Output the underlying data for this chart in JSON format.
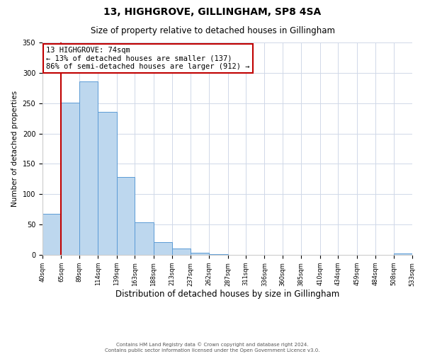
{
  "title": "13, HIGHGROVE, GILLINGHAM, SP8 4SA",
  "subtitle": "Size of property relative to detached houses in Gillingham",
  "xlabel": "Distribution of detached houses by size in Gillingham",
  "ylabel": "Number of detached properties",
  "bin_edges": [
    40,
    65,
    89,
    114,
    139,
    163,
    188,
    213,
    237,
    262,
    287,
    311,
    336,
    360,
    385,
    410,
    434,
    459,
    484,
    508,
    533
  ],
  "bar_heights": [
    68,
    251,
    286,
    236,
    128,
    54,
    21,
    10,
    4,
    1,
    0,
    0,
    0,
    0,
    0,
    0,
    0,
    0,
    0,
    2
  ],
  "bar_color": "#bdd7ee",
  "bar_edge_color": "#5b9bd5",
  "property_bin_edge": 65,
  "vline_color": "#c00000",
  "annotation_text": "13 HIGHGROVE: 74sqm\n← 13% of detached houses are smaller (137)\n86% of semi-detached houses are larger (912) →",
  "annotation_box_color": "#ffffff",
  "annotation_box_edge_color": "#c00000",
  "ylim": [
    0,
    350
  ],
  "tick_labels": [
    "40sqm",
    "65sqm",
    "89sqm",
    "114sqm",
    "139sqm",
    "163sqm",
    "188sqm",
    "213sqm",
    "237sqm",
    "262sqm",
    "287sqm",
    "311sqm",
    "336sqm",
    "360sqm",
    "385sqm",
    "410sqm",
    "434sqm",
    "459sqm",
    "484sqm",
    "508sqm",
    "533sqm"
  ],
  "footer_line1": "Contains HM Land Registry data © Crown copyright and database right 2024.",
  "footer_line2": "Contains public sector information licensed under the Open Government Licence v3.0.",
  "background_color": "#ffffff",
  "grid_color": "#d0d8e8",
  "title_fontsize": 10,
  "subtitle_fontsize": 8.5,
  "ylabel_fontsize": 7.5,
  "xlabel_fontsize": 8.5,
  "tick_fontsize": 6,
  "annotation_fontsize": 7.5,
  "footer_fontsize": 5
}
